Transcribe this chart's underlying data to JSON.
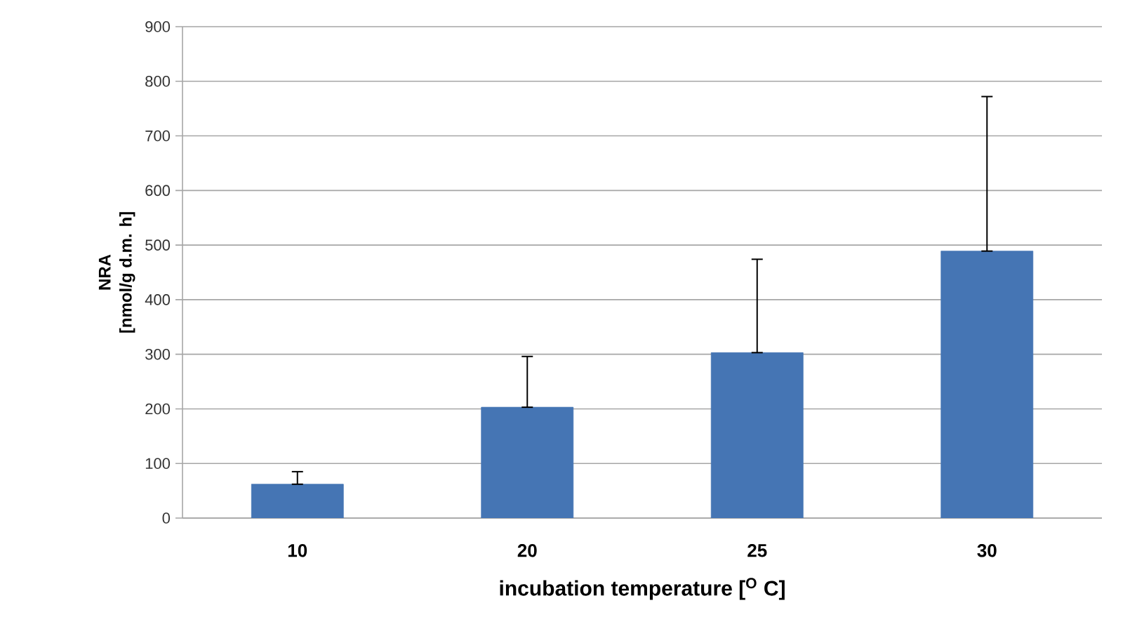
{
  "chart_data": {
    "type": "bar",
    "xlabel": "incubation temperature [$^{O}$ C]",
    "ylabel": "NRA\n[nmol/g d.m. h]",
    "categories": [
      "10",
      "20",
      "25",
      "30"
    ],
    "values": [
      62,
      203,
      303,
      489
    ],
    "color": "#4575b4",
    "errors": [
      [
        62,
        85
      ],
      [
        203,
        296
      ],
      [
        303,
        474
      ],
      [
        489,
        772
      ]
    ],
    "ylim": [
      0,
      900
    ],
    "yticks": [
      0,
      100,
      200,
      300,
      400,
      500,
      600,
      700,
      800,
      900
    ],
    "grid": "y"
  }
}
